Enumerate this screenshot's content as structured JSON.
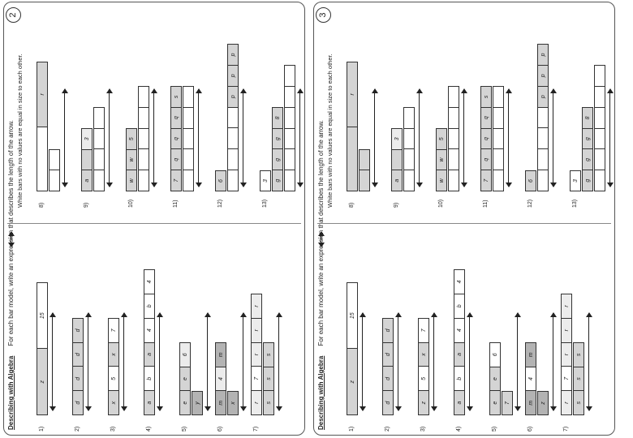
{
  "pages": [
    {
      "page_number": "2",
      "title_bold": "Describing with Algebra",
      "instruction": "For each bar model, write an expression that describes the length of the arrow.",
      "note": "White bars with no values are equal in size to each other.",
      "questions": [
        {
          "label": "1)",
          "bars": [
            [
              {
                "t": "z",
                "f": "g1"
              },
              {
                "t": "15",
                "f": "w"
              }
            ]
          ]
        },
        {
          "label": "2)",
          "bars": [
            [
              {
                "t": "d",
                "f": "g1"
              },
              {
                "t": "d",
                "f": "g1"
              },
              {
                "t": "d",
                "f": "g1"
              },
              {
                "t": "d",
                "f": "g1"
              }
            ]
          ]
        },
        {
          "label": "3)",
          "bars": [
            [
              {
                "t": "x",
                "f": "g1"
              },
              {
                "t": "5",
                "f": "w"
              },
              {
                "t": "x",
                "f": "g1"
              },
              {
                "t": "7",
                "f": "w"
              }
            ]
          ]
        },
        {
          "label": "4)",
          "bars": [
            [
              {
                "t": "a",
                "f": "g1"
              },
              {
                "t": "b",
                "f": "w"
              },
              {
                "t": "a",
                "f": "g1"
              },
              {
                "t": "4",
                "f": "w"
              },
              {
                "t": "b",
                "f": "w"
              },
              {
                "t": "4",
                "f": "w"
              }
            ]
          ]
        },
        {
          "label": "5)",
          "bars": [
            [
              {
                "t": "e",
                "f": "g1"
              },
              {
                "t": "e",
                "f": "g1"
              },
              {
                "t": "6",
                "f": "g3"
              }
            ],
            [
              {
                "t": "y",
                "f": "g2"
              }
            ]
          ]
        },
        {
          "label": "6)",
          "bars": [
            [
              {
                "t": "m",
                "f": "g2"
              },
              {
                "t": "4",
                "f": "g3"
              },
              {
                "t": "m",
                "f": "g2"
              }
            ],
            [
              {
                "t": "x",
                "f": "g2"
              }
            ]
          ]
        },
        {
          "label": "7)",
          "bars": [
            [
              {
                "t": "r",
                "f": "g3"
              },
              {
                "t": "7",
                "f": "w"
              },
              {
                "t": "r",
                "f": "g3"
              },
              {
                "t": "r",
                "f": "g3"
              },
              {
                "t": "r",
                "f": "g3"
              }
            ],
            [
              {
                "t": "s",
                "f": "g1"
              },
              {
                "t": "s",
                "f": "g1"
              },
              {
                "t": "s",
                "f": "g1"
              }
            ]
          ]
        },
        {
          "label": "8)",
          "bars": [
            [
              {
                "t": "",
                "f": "w"
              },
              {
                "t": "r",
                "f": "g1"
              }
            ],
            [
              {
                "t": "",
                "f": "w"
              },
              {
                "t": "",
                "f": "w"
              }
            ]
          ]
        },
        {
          "label": "9)",
          "bars": [
            [
              {
                "t": "a",
                "f": "g1"
              },
              {
                "t": "",
                "f": "g1"
              },
              {
                "t": "3",
                "f": "g3"
              }
            ],
            [
              {
                "t": "",
                "f": "w"
              },
              {
                "t": "",
                "f": "w"
              },
              {
                "t": "",
                "f": "w"
              },
              {
                "t": "",
                "f": "w"
              }
            ]
          ]
        },
        {
          "label": "10)",
          "bars": [
            [
              {
                "t": "w",
                "f": "g1"
              },
              {
                "t": "w",
                "f": "g1"
              },
              {
                "t": "5",
                "f": "g1"
              }
            ],
            [
              {
                "t": "",
                "f": "w"
              },
              {
                "t": "",
                "f": "w"
              },
              {
                "t": "",
                "f": "w"
              },
              {
                "t": "",
                "f": "w"
              },
              {
                "t": "",
                "f": "w"
              }
            ]
          ]
        },
        {
          "label": "11)",
          "bars": [
            [
              {
                "t": "7",
                "f": "g1"
              },
              {
                "t": "q",
                "f": "g1"
              },
              {
                "t": "q",
                "f": "g1"
              },
              {
                "t": "q",
                "f": "g1"
              },
              {
                "t": "s",
                "f": "g1"
              }
            ],
            [
              {
                "t": "",
                "f": "w"
              },
              {
                "t": "",
                "f": "w"
              },
              {
                "t": "",
                "f": "w"
              },
              {
                "t": "",
                "f": "w"
              },
              {
                "t": "",
                "f": "w"
              }
            ]
          ]
        },
        {
          "label": "12)",
          "bars": [
            [
              {
                "t": "6",
                "f": "g1"
              }
            ],
            [
              {
                "t": "",
                "f": "w"
              },
              {
                "t": "",
                "f": "w"
              },
              {
                "t": "",
                "f": "w"
              },
              {
                "t": "",
                "f": "w"
              },
              {
                "t": "p",
                "f": "g1"
              },
              {
                "t": "p",
                "f": "g1"
              },
              {
                "t": "p",
                "f": "g1"
              }
            ]
          ]
        },
        {
          "label": "13)",
          "bars": [
            [
              {
                "t": "3",
                "f": "w"
              }
            ],
            [
              {
                "t": "g",
                "f": "g1"
              },
              {
                "t": "g",
                "f": "g1"
              },
              {
                "t": "g",
                "f": "g1"
              },
              {
                "t": "8",
                "f": "g1"
              }
            ],
            [
              {
                "t": "",
                "f": "w"
              },
              {
                "t": "",
                "f": "w"
              },
              {
                "t": "",
                "f": "w"
              },
              {
                "t": "",
                "f": "w"
              },
              {
                "t": "",
                "f": "w"
              },
              {
                "t": "",
                "f": "w"
              }
            ]
          ]
        }
      ]
    },
    {
      "page_number": "3",
      "title_bold": "Describing with Algebra",
      "instruction": "For each bar model, write an expression that describes the length of the arrow.",
      "note": "White bars with no values are equal in size to each other.",
      "questions": [
        {
          "label": "1)",
          "bars": [
            [
              {
                "t": "z",
                "f": "g1"
              },
              {
                "t": "15",
                "f": "w"
              }
            ]
          ]
        },
        {
          "label": "2)",
          "bars": [
            [
              {
                "t": "d",
                "f": "g1"
              },
              {
                "t": "d",
                "f": "g1"
              },
              {
                "t": "d",
                "f": "g1"
              },
              {
                "t": "d",
                "f": "g1"
              }
            ]
          ]
        },
        {
          "label": "3)",
          "bars": [
            [
              {
                "t": "z",
                "f": "g1"
              },
              {
                "t": "5",
                "f": "w"
              },
              {
                "t": "x",
                "f": "g1"
              },
              {
                "t": "7",
                "f": "w"
              }
            ]
          ]
        },
        {
          "label": "4)",
          "bars": [
            [
              {
                "t": "a",
                "f": "g1"
              },
              {
                "t": "b",
                "f": "w"
              },
              {
                "t": "a",
                "f": "g1"
              },
              {
                "t": "4",
                "f": "w"
              },
              {
                "t": "b",
                "f": "w"
              },
              {
                "t": "4",
                "f": "w"
              }
            ]
          ]
        },
        {
          "label": "5)",
          "bars": [
            [
              {
                "t": "e",
                "f": "g1"
              },
              {
                "t": "e",
                "f": "g1"
              },
              {
                "t": "6",
                "f": "w"
              }
            ],
            [
              {
                "t": "7",
                "f": "g1"
              }
            ]
          ]
        },
        {
          "label": "6)",
          "bars": [
            [
              {
                "t": "m",
                "f": "g2"
              },
              {
                "t": "4",
                "f": "w"
              },
              {
                "t": "m",
                "f": "g2"
              }
            ],
            [
              {
                "t": "z",
                "f": "g2"
              }
            ]
          ]
        },
        {
          "label": "7)",
          "bars": [
            [
              {
                "t": "r",
                "f": "g3"
              },
              {
                "t": "7",
                "f": "w"
              },
              {
                "t": "r",
                "f": "g3"
              },
              {
                "t": "r",
                "f": "g3"
              },
              {
                "t": "r",
                "f": "g3"
              }
            ],
            [
              {
                "t": "s",
                "f": "g1"
              },
              {
                "t": "s",
                "f": "g1"
              },
              {
                "t": "s",
                "f": "g1"
              }
            ]
          ]
        },
        {
          "label": "8)",
          "bars": [
            [
              {
                "t": "",
                "f": "g1"
              },
              {
                "t": "r",
                "f": "g1"
              }
            ],
            [
              {
                "t": "",
                "f": "g1"
              },
              {
                "t": "",
                "f": "g1"
              }
            ]
          ]
        },
        {
          "label": "9)",
          "bars": [
            [
              {
                "t": "a",
                "f": "g1"
              },
              {
                "t": "",
                "f": "g1"
              },
              {
                "t": "3",
                "f": "g3"
              }
            ],
            [
              {
                "t": "",
                "f": "w"
              },
              {
                "t": "",
                "f": "w"
              },
              {
                "t": "",
                "f": "w"
              },
              {
                "t": "",
                "f": "w"
              }
            ]
          ]
        },
        {
          "label": "10)",
          "bars": [
            [
              {
                "t": "w",
                "f": "g1"
              },
              {
                "t": "w",
                "f": "g1"
              },
              {
                "t": "5",
                "f": "g1"
              }
            ],
            [
              {
                "t": "",
                "f": "w"
              },
              {
                "t": "",
                "f": "w"
              },
              {
                "t": "",
                "f": "w"
              },
              {
                "t": "",
                "f": "w"
              },
              {
                "t": "",
                "f": "w"
              }
            ]
          ]
        },
        {
          "label": "11)",
          "bars": [
            [
              {
                "t": "7",
                "f": "g1"
              },
              {
                "t": "q",
                "f": "g1"
              },
              {
                "t": "q",
                "f": "g1"
              },
              {
                "t": "q",
                "f": "g1"
              },
              {
                "t": "s",
                "f": "g1"
              }
            ],
            [
              {
                "t": "",
                "f": "w"
              },
              {
                "t": "",
                "f": "w"
              },
              {
                "t": "",
                "f": "w"
              },
              {
                "t": "",
                "f": "w"
              },
              {
                "t": "",
                "f": "w"
              }
            ]
          ]
        },
        {
          "label": "12)",
          "bars": [
            [
              {
                "t": "6",
                "f": "g1"
              }
            ],
            [
              {
                "t": "",
                "f": "w"
              },
              {
                "t": "",
                "f": "w"
              },
              {
                "t": "",
                "f": "w"
              },
              {
                "t": "",
                "f": "w"
              },
              {
                "t": "p",
                "f": "g1"
              },
              {
                "t": "p",
                "f": "g1"
              },
              {
                "t": "p",
                "f": "g1"
              }
            ]
          ]
        },
        {
          "label": "13)",
          "bars": [
            [
              {
                "t": "3",
                "f": "w"
              }
            ],
            [
              {
                "t": "g",
                "f": "g1"
              },
              {
                "t": "g",
                "f": "g1"
              },
              {
                "t": "g",
                "f": "g1"
              },
              {
                "t": "8",
                "f": "g1"
              }
            ],
            [
              {
                "t": "",
                "f": "w"
              },
              {
                "t": "",
                "f": "w"
              },
              {
                "t": "",
                "f": "w"
              },
              {
                "t": "",
                "f": "w"
              },
              {
                "t": "",
                "f": "w"
              },
              {
                "t": "",
                "f": "w"
              }
            ]
          ]
        }
      ]
    }
  ]
}
